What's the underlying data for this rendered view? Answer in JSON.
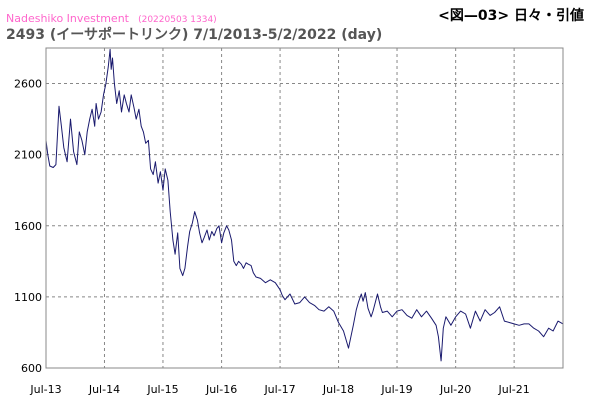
{
  "header": {
    "brand": "Nadeshiko Investment",
    "timestamp": "(20220503 1334)",
    "figure_label": "<図—03> 日々・引値",
    "title": "2493 (イーサポートリンク) 7/1/2013-5/2/2022 (day)"
  },
  "colors": {
    "line": "#1a1a6e",
    "grid": "#888888",
    "brand": "#ff66cc",
    "title": "#555555"
  },
  "chart_data": {
    "type": "line",
    "title": "2493 (イーサポートリンク) 7/1/2013-5/2/2022 (day)",
    "xlabel": "",
    "ylabel": "",
    "ylim": [
      600,
      2850
    ],
    "xlim": [
      "2013-07-01",
      "2022-05-02"
    ],
    "yticks": [
      600,
      1100,
      1600,
      2100,
      2600
    ],
    "xticks": [
      {
        "date": "2013-07-01",
        "label": "Jul-13"
      },
      {
        "date": "2014-07-01",
        "label": "Jul-14"
      },
      {
        "date": "2015-07-01",
        "label": "Jul-15"
      },
      {
        "date": "2016-07-01",
        "label": "Jul-16"
      },
      {
        "date": "2017-07-01",
        "label": "Jul-17"
      },
      {
        "date": "2018-07-01",
        "label": "Jul-18"
      },
      {
        "date": "2019-07-01",
        "label": "Jul-19"
      },
      {
        "date": "2020-07-01",
        "label": "Jul-20"
      },
      {
        "date": "2021-07-01",
        "label": "Jul-21"
      }
    ],
    "grid": true,
    "series": [
      {
        "name": "",
        "x": [
          "2013-07-01",
          "2013-07-12",
          "2013-07-25",
          "2013-08-15",
          "2013-09-01",
          "2013-09-20",
          "2013-10-05",
          "2013-10-20",
          "2013-11-10",
          "2013-12-01",
          "2013-12-20",
          "2014-01-10",
          "2014-01-25",
          "2014-02-10",
          "2014-02-28",
          "2014-03-15",
          "2014-03-31",
          "2014-04-15",
          "2014-05-01",
          "2014-05-10",
          "2014-05-25",
          "2014-06-10",
          "2014-06-25",
          "2014-07-10",
          "2014-07-25",
          "2014-08-05",
          "2014-08-12",
          "2014-08-20",
          "2014-09-01",
          "2014-09-15",
          "2014-10-01",
          "2014-10-15",
          "2014-11-01",
          "2014-11-15",
          "2014-12-01",
          "2014-12-15",
          "2015-01-01",
          "2015-01-15",
          "2015-02-01",
          "2015-02-15",
          "2015-03-01",
          "2015-03-15",
          "2015-04-01",
          "2015-04-15",
          "2015-05-01",
          "2015-05-15",
          "2015-06-01",
          "2015-06-15",
          "2015-07-01",
          "2015-07-15",
          "2015-08-01",
          "2015-08-15",
          "2015-09-01",
          "2015-09-15",
          "2015-10-01",
          "2015-10-15",
          "2015-11-01",
          "2015-11-15",
          "2015-12-01",
          "2015-12-15",
          "2016-01-01",
          "2016-01-15",
          "2016-02-01",
          "2016-02-15",
          "2016-03-01",
          "2016-03-15",
          "2016-04-01",
          "2016-04-15",
          "2016-05-01",
          "2016-05-15",
          "2016-06-01",
          "2016-06-15",
          "2016-07-01",
          "2016-07-15",
          "2016-08-01",
          "2016-08-15",
          "2016-09-01",
          "2016-09-15",
          "2016-10-01",
          "2016-10-15",
          "2016-11-01",
          "2016-11-15",
          "2016-12-01",
          "2016-12-15",
          "2017-01-01",
          "2017-01-15",
          "2017-02-01",
          "2017-03-01",
          "2017-04-01",
          "2017-05-01",
          "2017-06-01",
          "2017-07-01",
          "2017-07-15",
          "2017-08-01",
          "2017-09-01",
          "2017-10-01",
          "2017-11-01",
          "2017-12-01",
          "2018-01-01",
          "2018-02-01",
          "2018-03-01",
          "2018-04-01",
          "2018-05-01",
          "2018-06-01",
          "2018-07-01",
          "2018-08-01",
          "2018-09-01",
          "2018-10-01",
          "2018-10-20",
          "2018-11-01",
          "2018-11-20",
          "2018-12-01",
          "2018-12-15",
          "2019-01-01",
          "2019-01-20",
          "2019-02-01",
          "2019-03-01",
          "2019-03-20",
          "2019-04-01",
          "2019-05-01",
          "2019-06-01",
          "2019-07-01",
          "2019-08-01",
          "2019-09-01",
          "2019-10-01",
          "2019-11-01",
          "2019-12-01",
          "2020-01-01",
          "2020-02-01",
          "2020-03-01",
          "2020-03-15",
          "2020-04-01",
          "2020-04-15",
          "2020-05-01",
          "2020-06-01",
          "2020-07-01",
          "2020-08-01",
          "2020-09-01",
          "2020-10-01",
          "2020-11-01",
          "2020-12-01",
          "2021-01-01",
          "2021-02-01",
          "2021-03-01",
          "2021-04-01",
          "2021-05-01",
          "2021-06-01",
          "2021-07-01",
          "2021-08-01",
          "2021-09-01",
          "2021-10-01",
          "2021-11-01",
          "2021-12-01",
          "2022-01-01",
          "2022-02-01",
          "2022-03-01",
          "2022-04-01",
          "2022-05-02"
        ],
        "values": [
          2200,
          2100,
          2020,
          2010,
          2030,
          2440,
          2300,
          2150,
          2050,
          2350,
          2120,
          2030,
          2260,
          2200,
          2100,
          2260,
          2350,
          2420,
          2300,
          2460,
          2350,
          2400,
          2520,
          2600,
          2720,
          2840,
          2700,
          2780,
          2600,
          2460,
          2550,
          2400,
          2520,
          2460,
          2400,
          2520,
          2430,
          2350,
          2420,
          2300,
          2260,
          2180,
          2200,
          2000,
          1960,
          2050,
          1900,
          1980,
          1850,
          2000,
          1920,
          1700,
          1500,
          1400,
          1550,
          1300,
          1250,
          1300,
          1450,
          1560,
          1620,
          1700,
          1640,
          1550,
          1480,
          1520,
          1570,
          1500,
          1560,
          1530,
          1580,
          1600,
          1480,
          1550,
          1600,
          1570,
          1500,
          1350,
          1320,
          1350,
          1330,
          1300,
          1340,
          1330,
          1320,
          1270,
          1240,
          1230,
          1200,
          1220,
          1200,
          1150,
          1110,
          1080,
          1120,
          1050,
          1060,
          1100,
          1060,
          1040,
          1010,
          1000,
          1030,
          1000,
          920,
          860,
          740,
          900,
          1010,
          1060,
          1120,
          1070,
          1130,
          1020,
          960,
          1000,
          1120,
          1030,
          990,
          1000,
          960,
          1000,
          1010,
          970,
          950,
          1010,
          960,
          1000,
          950,
          900,
          820,
          650,
          880,
          960,
          900,
          960,
          1000,
          980,
          880,
          1000,
          930,
          1010,
          970,
          990,
          1030,
          930,
          920,
          910,
          900,
          910,
          910,
          880,
          860,
          820,
          880,
          860,
          930,
          910
        ]
      }
    ]
  }
}
